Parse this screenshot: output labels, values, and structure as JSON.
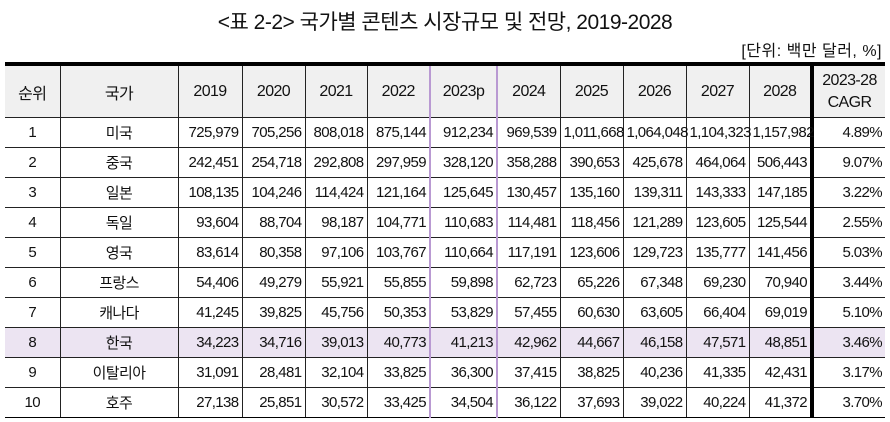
{
  "title": "<표 2-2> 국가별 콘텐츠 시장규모 및 전망, 2019-2028",
  "unit": "[단위: 백만 달러, %]",
  "table": {
    "headers": [
      "순위",
      "국가",
      "2019",
      "2020",
      "2021",
      "2022",
      "2023p",
      "2024",
      "2025",
      "2026",
      "2027",
      "2028"
    ],
    "cagr_header": [
      "2023-28",
      "CAGR"
    ],
    "highlight_color": "#ece4f2",
    "highlight_column_color": "#b999d2",
    "rows": [
      {
        "rank": "1",
        "country": "미국",
        "values": [
          "725,979",
          "705,256",
          "808,018",
          "875,144",
          "912,234",
          "969,539",
          "1,011,668",
          "1,064,048",
          "1,104,323",
          "1,157,982"
        ],
        "cagr": "4.89%"
      },
      {
        "rank": "2",
        "country": "중국",
        "values": [
          "242,451",
          "254,718",
          "292,808",
          "297,959",
          "328,120",
          "358,288",
          "390,653",
          "425,678",
          "464,064",
          "506,443"
        ],
        "cagr": "9.07%"
      },
      {
        "rank": "3",
        "country": "일본",
        "values": [
          "108,135",
          "104,246",
          "114,424",
          "121,164",
          "125,645",
          "130,457",
          "135,160",
          "139,311",
          "143,333",
          "147,185"
        ],
        "cagr": "3.22%"
      },
      {
        "rank": "4",
        "country": "독일",
        "values": [
          "93,604",
          "88,704",
          "98,187",
          "104,771",
          "110,683",
          "114,481",
          "118,456",
          "121,289",
          "123,605",
          "125,544"
        ],
        "cagr": "2.55%"
      },
      {
        "rank": "5",
        "country": "영국",
        "values": [
          "83,614",
          "80,358",
          "97,106",
          "103,767",
          "110,664",
          "117,191",
          "123,606",
          "129,723",
          "135,777",
          "141,456"
        ],
        "cagr": "5.03%"
      },
      {
        "rank": "6",
        "country": "프랑스",
        "values": [
          "54,406",
          "49,279",
          "55,921",
          "55,855",
          "59,898",
          "62,723",
          "65,226",
          "67,348",
          "69,230",
          "70,940"
        ],
        "cagr": "3.44%"
      },
      {
        "rank": "7",
        "country": "캐나다",
        "values": [
          "41,245",
          "39,825",
          "45,756",
          "50,353",
          "53,829",
          "57,455",
          "60,630",
          "63,605",
          "66,404",
          "69,019"
        ],
        "cagr": "5.10%"
      },
      {
        "rank": "8",
        "country": "한국",
        "values": [
          "34,223",
          "34,716",
          "39,013",
          "40,773",
          "41,213",
          "42,962",
          "44,667",
          "46,158",
          "47,571",
          "48,851"
        ],
        "cagr": "3.46%",
        "highlighted": true
      },
      {
        "rank": "9",
        "country": "이탈리아",
        "values": [
          "31,091",
          "28,481",
          "32,104",
          "33,825",
          "36,300",
          "37,415",
          "38,825",
          "40,236",
          "41,335",
          "42,431"
        ],
        "cagr": "3.17%"
      },
      {
        "rank": "10",
        "country": "호주",
        "values": [
          "27,138",
          "25,851",
          "30,572",
          "33,425",
          "34,504",
          "36,122",
          "37,693",
          "39,022",
          "40,224",
          "41,372"
        ],
        "cagr": "3.70%"
      }
    ]
  }
}
